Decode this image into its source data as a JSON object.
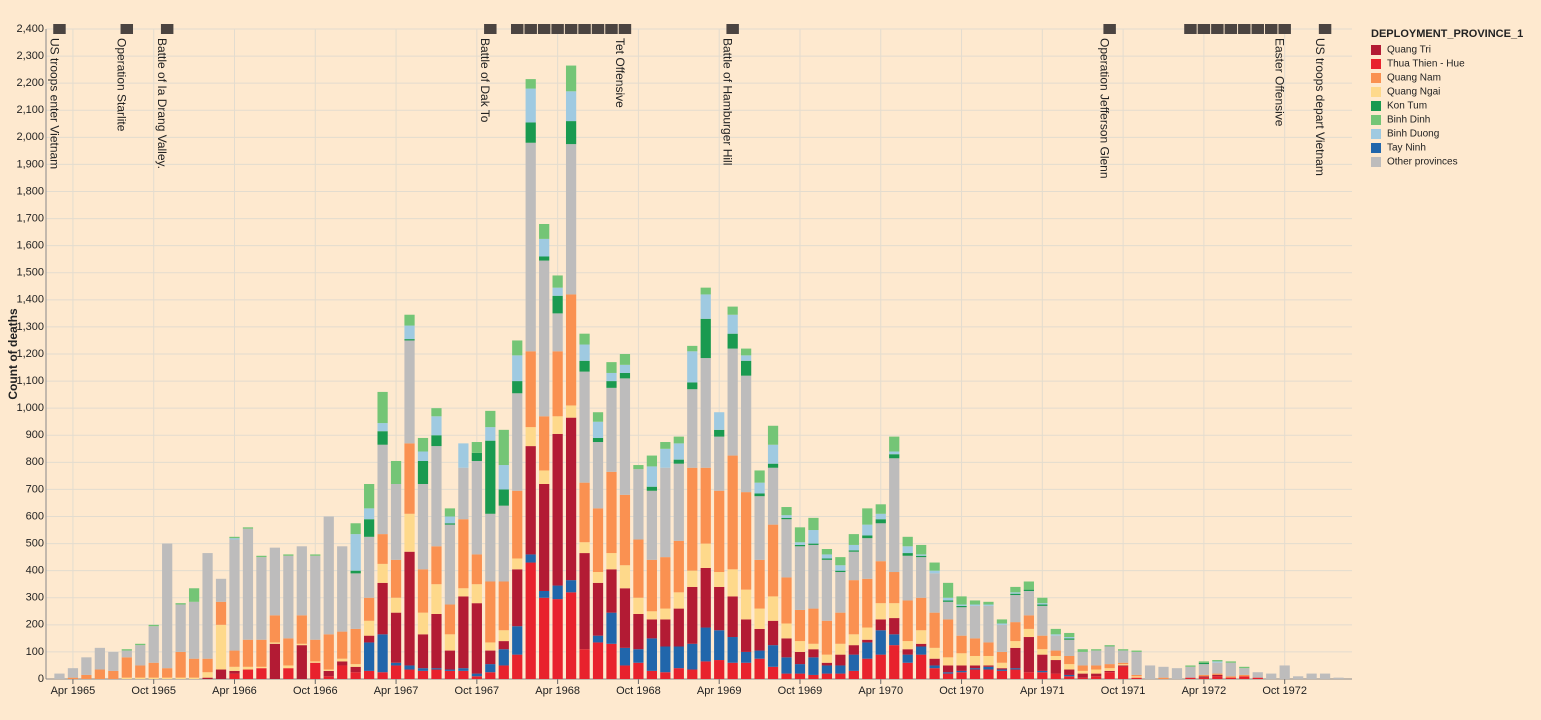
{
  "chart_data": {
    "type": "stacked_bar",
    "y_label": "Count of deaths",
    "legend_title": "DEPLOYMENT_PROVINCE_1",
    "legend": "right",
    "grid": true,
    "background": "#fee9cf",
    "stack_order": [
      1,
      7,
      0,
      3,
      2,
      8,
      4,
      6,
      5
    ],
    "xlim": [
      "1965-02",
      "1973-03"
    ],
    "xticks": [
      {
        "value": "1965-04",
        "label": "Apr 1965"
      },
      {
        "value": "1965-10",
        "label": "Oct 1965"
      },
      {
        "value": "1966-04",
        "label": "Apr 1966"
      },
      {
        "value": "1966-10",
        "label": "Oct 1966"
      },
      {
        "value": "1967-04",
        "label": "Apr 1967"
      },
      {
        "value": "1967-10",
        "label": "Oct 1967"
      },
      {
        "value": "1968-04",
        "label": "Apr 1968"
      },
      {
        "value": "1968-10",
        "label": "Oct 1968"
      },
      {
        "value": "1969-04",
        "label": "Apr 1969"
      },
      {
        "value": "1969-10",
        "label": "Oct 1969"
      },
      {
        "value": "1970-04",
        "label": "Apr 1970"
      },
      {
        "value": "1970-10",
        "label": "Oct 1970"
      },
      {
        "value": "1971-04",
        "label": "Apr 1971"
      },
      {
        "value": "1971-10",
        "label": "Oct 1971"
      },
      {
        "value": "1972-04",
        "label": "Apr 1972"
      },
      {
        "value": "1972-10",
        "label": "Oct 1972"
      }
    ],
    "ylim": [
      0,
      2400
    ],
    "yticks": [
      0,
      100,
      200,
      300,
      400,
      500,
      600,
      700,
      800,
      900,
      {
        "value": 1000,
        "label": "1,000"
      },
      {
        "value": 1100,
        "label": "1,100"
      },
      {
        "value": 1200,
        "label": "1,200"
      },
      {
        "value": 1300,
        "label": "1,300"
      },
      {
        "value": 1400,
        "label": "1,400"
      },
      {
        "value": 1500,
        "label": "1,500"
      },
      {
        "value": 1600,
        "label": "1,600"
      },
      {
        "value": 1700,
        "label": "1,700"
      },
      {
        "value": 1800,
        "label": "1,800"
      },
      {
        "value": 1900,
        "label": "1,900"
      },
      {
        "value": 2000,
        "label": "2,000"
      },
      {
        "value": 2100,
        "label": "2,100"
      },
      {
        "value": 2200,
        "label": "2,200"
      },
      {
        "value": 2300,
        "label": "2,300"
      },
      {
        "value": 2400,
        "label": "2,400"
      }
    ],
    "x": [
      "1965-03",
      "1965-04",
      "1965-05",
      "1965-06",
      "1965-07",
      "1965-08",
      "1965-09",
      "1965-10",
      "1965-11",
      "1965-12",
      "1966-01",
      "1966-02",
      "1966-03",
      "1966-04",
      "1966-05",
      "1966-06",
      "1966-07",
      "1966-08",
      "1966-09",
      "1966-10",
      "1966-11",
      "1966-12",
      "1967-01",
      "1967-02",
      "1967-03",
      "1967-04",
      "1967-05",
      "1967-06",
      "1967-07",
      "1967-08",
      "1967-09",
      "1967-10",
      "1967-11",
      "1967-12",
      "1968-01",
      "1968-02",
      "1968-03",
      "1968-04",
      "1968-05",
      "1968-06",
      "1968-07",
      "1968-08",
      "1968-09",
      "1968-10",
      "1968-11",
      "1968-12",
      "1969-01",
      "1969-02",
      "1969-03",
      "1969-04",
      "1969-05",
      "1969-06",
      "1969-07",
      "1969-08",
      "1969-09",
      "1969-10",
      "1969-11",
      "1969-12",
      "1970-01",
      "1970-02",
      "1970-03",
      "1970-04",
      "1970-05",
      "1970-06",
      "1970-07",
      "1970-08",
      "1970-09",
      "1970-10",
      "1970-11",
      "1970-12",
      "1971-01",
      "1971-02",
      "1971-03",
      "1971-04",
      "1971-05",
      "1971-06",
      "1971-07",
      "1971-08",
      "1971-09",
      "1971-10",
      "1971-11",
      "1971-12",
      "1972-01",
      "1972-02",
      "1972-03",
      "1972-04",
      "1972-05",
      "1972-06",
      "1972-07",
      "1972-08",
      "1972-09",
      "1972-10",
      "1972-11",
      "1972-12",
      "1973-01",
      "1973-02"
    ],
    "series": [
      {
        "name": "Quang Tri",
        "color": "#b31b34",
        "values": [
          0,
          0,
          0,
          0,
          0,
          0,
          0,
          0,
          0,
          0,
          0,
          5,
          35,
          10,
          0,
          0,
          130,
          0,
          125,
          0,
          20,
          15,
          20,
          25,
          190,
          185,
          420,
          125,
          200,
          70,
          265,
          260,
          50,
          30,
          210,
          400,
          395,
          560,
          600,
          355,
          195,
          160,
          220,
          130,
          70,
          100,
          140,
          210,
          220,
          160,
          150,
          120,
          80,
          90,
          70,
          45,
          30,
          10,
          40,
          35,
          10,
          40,
          60,
          20,
          10,
          25,
          25,
          20,
          10,
          5,
          5,
          75,
          130,
          60,
          50,
          20,
          15,
          10,
          5,
          5,
          0,
          0,
          0,
          0,
          0,
          5,
          5,
          0,
          0,
          0,
          0,
          0,
          0,
          0,
          0,
          0
        ]
      },
      {
        "name": "Thua Thien - Hue",
        "color": "#e8222d",
        "values": [
          0,
          0,
          0,
          0,
          0,
          0,
          0,
          0,
          0,
          0,
          0,
          0,
          0,
          20,
          35,
          40,
          0,
          40,
          0,
          60,
          10,
          50,
          25,
          30,
          25,
          50,
          35,
          30,
          35,
          30,
          30,
          10,
          25,
          50,
          90,
          430,
          300,
          295,
          320,
          110,
          135,
          130,
          50,
          60,
          30,
          25,
          40,
          35,
          65,
          70,
          60,
          60,
          75,
          45,
          20,
          20,
          15,
          20,
          20,
          30,
          75,
          90,
          125,
          60,
          90,
          40,
          20,
          25,
          35,
          35,
          30,
          35,
          25,
          25,
          20,
          10,
          5,
          10,
          25,
          45,
          5,
          0,
          0,
          0,
          5,
          5,
          10,
          5,
          10,
          5,
          0,
          0,
          0,
          0,
          0,
          0
        ]
      },
      {
        "name": "Quang Nam",
        "color": "#fa9151",
        "values": [
          0,
          5,
          15,
          35,
          30,
          75,
          45,
          55,
          35,
          95,
          70,
          50,
          85,
          60,
          100,
          100,
          100,
          100,
          105,
          80,
          130,
          100,
          130,
          85,
          110,
          140,
          260,
          160,
          140,
          110,
          255,
          110,
          225,
          180,
          250,
          280,
          200,
          240,
          410,
          220,
          235,
          300,
          260,
          215,
          190,
          190,
          190,
          380,
          280,
          300,
          420,
          360,
          180,
          265,
          170,
          115,
          130,
          125,
          115,
          200,
          180,
          155,
          115,
          150,
          120,
          130,
          140,
          65,
          65,
          50,
          40,
          70,
          50,
          50,
          20,
          30,
          20,
          15,
          15,
          5,
          5,
          0,
          5,
          0,
          0,
          5,
          5,
          5,
          5,
          0,
          0,
          0,
          0,
          0,
          0,
          0
        ]
      },
      {
        "name": "Quang Ngai",
        "color": "#fed98b",
        "values": [
          0,
          0,
          0,
          0,
          0,
          5,
          5,
          5,
          5,
          5,
          5,
          20,
          165,
          15,
          10,
          5,
          5,
          10,
          5,
          5,
          5,
          10,
          10,
          55,
          70,
          55,
          140,
          80,
          110,
          60,
          30,
          70,
          30,
          40,
          40,
          70,
          50,
          65,
          45,
          40,
          40,
          60,
          85,
          60,
          30,
          40,
          60,
          60,
          90,
          55,
          100,
          110,
          75,
          90,
          55,
          40,
          20,
          30,
          40,
          40,
          45,
          60,
          55,
          30,
          50,
          40,
          30,
          45,
          35,
          35,
          20,
          25,
          30,
          20,
          15,
          20,
          10,
          15,
          10,
          5,
          5,
          0,
          0,
          0,
          0,
          0,
          0,
          0,
          0,
          0,
          0,
          0,
          0,
          0,
          0,
          0
        ]
      },
      {
        "name": "Kon Tum",
        "color": "#1a9a50",
        "values": [
          0,
          0,
          0,
          0,
          0,
          0,
          0,
          0,
          0,
          0,
          0,
          0,
          0,
          0,
          0,
          0,
          0,
          0,
          0,
          0,
          0,
          0,
          10,
          65,
          50,
          0,
          5,
          85,
          40,
          5,
          0,
          30,
          270,
          60,
          45,
          75,
          15,
          65,
          85,
          40,
          15,
          25,
          20,
          0,
          15,
          0,
          15,
          25,
          145,
          25,
          55,
          55,
          10,
          15,
          5,
          5,
          5,
          5,
          5,
          5,
          10,
          15,
          15,
          10,
          5,
          0,
          5,
          5,
          0,
          0,
          0,
          5,
          5,
          5,
          0,
          5,
          0,
          0,
          0,
          0,
          0,
          0,
          0,
          0,
          0,
          5,
          0,
          0,
          0,
          0,
          0,
          0,
          0,
          0,
          0,
          0
        ]
      },
      {
        "name": "Binh Dinh",
        "color": "#74c576",
        "values": [
          0,
          0,
          0,
          0,
          0,
          5,
          5,
          5,
          0,
          5,
          50,
          0,
          0,
          5,
          5,
          5,
          0,
          5,
          0,
          5,
          0,
          0,
          40,
          90,
          115,
          85,
          40,
          50,
          30,
          30,
          0,
          40,
          60,
          130,
          55,
          35,
          55,
          45,
          95,
          40,
          35,
          40,
          40,
          15,
          40,
          25,
          25,
          20,
          25,
          0,
          30,
          25,
          45,
          70,
          30,
          55,
          45,
          20,
          30,
          40,
          60,
          35,
          55,
          35,
          35,
          30,
          55,
          30,
          15,
          10,
          15,
          20,
          30,
          20,
          20,
          15,
          10,
          5,
          5,
          5,
          5,
          0,
          0,
          0,
          5,
          5,
          5,
          5,
          5,
          0,
          0,
          0,
          0,
          0,
          0,
          0
        ]
      },
      {
        "name": "Binh Duong",
        "color": "#9fcae1",
        "values": [
          0,
          0,
          0,
          0,
          0,
          0,
          0,
          0,
          0,
          0,
          0,
          0,
          0,
          5,
          0,
          0,
          0,
          0,
          0,
          0,
          0,
          0,
          135,
          40,
          30,
          0,
          50,
          35,
          70,
          25,
          90,
          0,
          50,
          90,
          95,
          125,
          65,
          30,
          110,
          60,
          60,
          30,
          30,
          0,
          75,
          70,
          60,
          115,
          90,
          65,
          70,
          20,
          40,
          70,
          10,
          10,
          50,
          15,
          20,
          20,
          40,
          20,
          10,
          25,
          5,
          10,
          10,
          5,
          5,
          5,
          5,
          5,
          0,
          5,
          5,
          5,
          0,
          0,
          0,
          0,
          0,
          0,
          0,
          0,
          0,
          0,
          5,
          0,
          0,
          0,
          0,
          0,
          0,
          0,
          0,
          0
        ]
      },
      {
        "name": "Tay Ninh",
        "color": "#2166ab",
        "values": [
          0,
          0,
          0,
          0,
          0,
          0,
          0,
          0,
          0,
          0,
          0,
          0,
          0,
          0,
          0,
          0,
          0,
          0,
          0,
          0,
          0,
          0,
          0,
          105,
          140,
          10,
          15,
          10,
          5,
          5,
          10,
          10,
          30,
          60,
          105,
          30,
          25,
          50,
          45,
          0,
          25,
          115,
          65,
          50,
          120,
          95,
          80,
          95,
          125,
          110,
          95,
          40,
          30,
          80,
          60,
          35,
          65,
          30,
          30,
          60,
          60,
          90,
          40,
          30,
          30,
          10,
          5,
          5,
          5,
          10,
          5,
          5,
          0,
          5,
          0,
          5,
          0,
          0,
          0,
          0,
          0,
          0,
          0,
          0,
          0,
          0,
          0,
          0,
          0,
          0,
          0,
          0,
          0,
          0,
          0,
          0
        ]
      },
      {
        "name": "Other provinces",
        "color": "#bdbcbc",
        "values": [
          20,
          35,
          65,
          80,
          70,
          25,
          75,
          135,
          460,
          175,
          210,
          390,
          85,
          410,
          410,
          305,
          250,
          305,
          255,
          310,
          435,
          315,
          205,
          225,
          330,
          280,
          380,
          315,
          370,
          295,
          190,
          345,
          250,
          280,
          360,
          770,
          575,
          140,
          555,
          410,
          245,
          310,
          430,
          260,
          255,
          330,
          285,
          290,
          405,
          200,
          395,
          430,
          235,
          210,
          215,
          235,
          235,
          225,
          150,
          105,
          150,
          140,
          420,
          165,
          150,
          145,
          65,
          105,
          120,
          135,
          100,
          100,
          90,
          110,
          55,
          60,
          50,
          55,
          65,
          45,
          85,
          50,
          40,
          40,
          40,
          40,
          40,
          50,
          25,
          20,
          20,
          50,
          10,
          20,
          20,
          5
        ]
      }
    ],
    "events": [
      {
        "start": "1965-03",
        "label": "US troops enter Vietnam"
      },
      {
        "start": "1965-08",
        "label": "Operation Starlite"
      },
      {
        "start": "1965-11",
        "label": "Battle of Ia Drang Valley."
      },
      {
        "start": "1967-11",
        "label": "Battle of Dak To"
      },
      {
        "start": "1968-01",
        "end": "1968-09",
        "label": "Tet Offensive"
      },
      {
        "start": "1969-05",
        "label": "Battle of Hamburger Hill"
      },
      {
        "start": "1971-09",
        "label": "Operation Jefferson Glenn"
      },
      {
        "start": "1972-03",
        "end": "1972-10",
        "label": "Easter Offensive"
      },
      {
        "start": "1973-01",
        "label": "US troops depart Vietnam"
      }
    ]
  }
}
